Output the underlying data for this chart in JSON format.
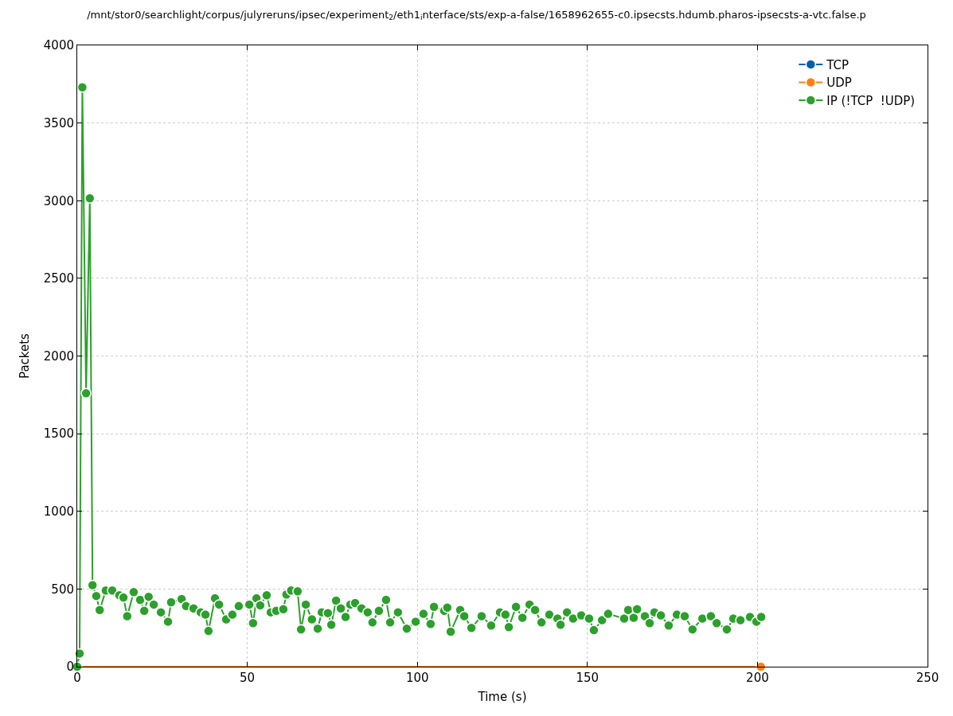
{
  "chart_data": {
    "type": "line",
    "title": "/mnt/stor0/searchlight/corpus/julyreruns/ipsec/experiment$_{2}$/eth1$_{i}$nterface/sts/exp-a-false/1658962655-c0.ipsecsts.hdumb.pharos-ipsecsts-a-vtc.false.p",
    "xlabel": "Time (s)",
    "ylabel": "Packets",
    "xlim": [
      0,
      250
    ],
    "xticks": [
      0,
      50,
      100,
      150,
      200,
      250
    ],
    "ylim": [
      0,
      4000
    ],
    "yticks": [
      0,
      500,
      1000,
      1500,
      2000,
      2500,
      3000,
      3500,
      4000
    ],
    "grid": true,
    "legend": "top right",
    "marker": "circle",
    "line_style": "solid",
    "series": [
      {
        "name": "TCP",
        "color": "#0060ad"
      },
      {
        "name": "UDP",
        "color": "#ff7f0e",
        "x": [
          0,
          201
        ],
        "values": [
          0,
          0
        ]
      },
      {
        "name": "IP (!TCP  !UDP)",
        "color": "#2ca02c",
        "x": [
          0,
          0.7,
          1.5,
          2.6,
          3.7,
          4.5,
          5.6,
          6.6,
          8.4,
          10.3,
          12.4,
          13.6,
          14.7,
          16.6,
          18.5,
          19.7,
          21,
          22.5,
          24.6,
          26.7,
          27.6,
          30.7,
          32,
          34.2,
          36.3,
          37.7,
          38.6,
          40.5,
          41.7,
          43.8,
          45.6,
          47.5,
          50.6,
          51.7,
          52.7,
          53.8,
          55.7,
          56.9,
          58.5,
          60.6,
          61.5,
          62.9,
          64.8,
          65.8,
          67.2,
          69,
          70.7,
          71.9,
          73.7,
          74.7,
          76.1,
          77.5,
          78.9,
          80.3,
          81.7,
          83.6,
          85.4,
          86.8,
          88.7,
          90.8,
          92,
          94.3,
          96.9,
          99.5,
          101.8,
          103.9,
          104.9,
          107.9,
          108.8,
          109.8,
          112.6,
          113.8,
          115.9,
          118.9,
          121.7,
          124.3,
          125.9,
          126.9,
          129,
          130.9,
          133,
          134.6,
          136.5,
          138.8,
          141.2,
          142.1,
          144,
          145.8,
          148.2,
          150.5,
          151.9,
          154.3,
          156.1,
          160.8,
          162,
          163.6,
          164.6,
          166.9,
          168.3,
          169.7,
          171.6,
          173.9,
          176.3,
          178.6,
          180.9,
          183.8,
          186.3,
          188,
          191,
          192.9,
          195,
          197.8,
          199.7,
          201.1
        ],
        "values": [
          0,
          85,
          3730,
          1760,
          3015,
          525,
          455,
          365,
          490,
          490,
          460,
          445,
          325,
          480,
          430,
          360,
          450,
          400,
          350,
          290,
          415,
          435,
          390,
          375,
          350,
          335,
          230,
          440,
          400,
          305,
          335,
          390,
          400,
          280,
          440,
          395,
          460,
          350,
          360,
          370,
          465,
          490,
          485,
          240,
          400,
          305,
          245,
          350,
          345,
          270,
          425,
          375,
          320,
          400,
          410,
          375,
          350,
          285,
          360,
          430,
          285,
          350,
          245,
          290,
          340,
          275,
          385,
          360,
          380,
          225,
          365,
          325,
          250,
          325,
          265,
          350,
          335,
          255,
          385,
          315,
          400,
          365,
          285,
          335,
          310,
          270,
          350,
          310,
          330,
          310,
          235,
          300,
          340,
          310,
          365,
          315,
          370,
          325,
          280,
          350,
          330,
          265,
          335,
          325,
          240,
          310,
          325,
          280,
          240,
          310,
          300,
          320,
          290,
          320
        ]
      }
    ]
  }
}
